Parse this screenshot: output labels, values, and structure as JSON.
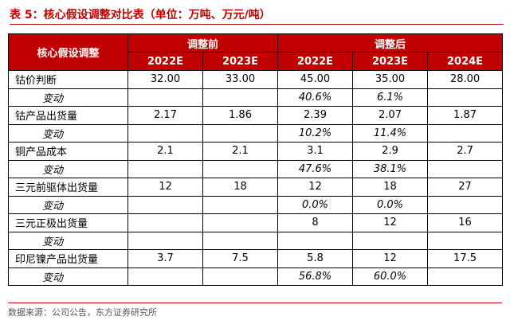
{
  "title": "表 5：核心假设调整对比表（单位：万吨、万元/吨）",
  "header": {
    "row_label": "核心假设调整",
    "group_before": "调整前",
    "group_after": "调整后",
    "years": [
      "2022E",
      "2023E",
      "2022E",
      "2023E",
      "2024E"
    ]
  },
  "rows": [
    {
      "label": "钴价判断",
      "cells": [
        "32.00",
        "33.00",
        "45.00",
        "35.00",
        "28.00"
      ]
    },
    {
      "label": "变动",
      "cells": [
        "",
        "",
        "40.6%",
        "6.1%",
        ""
      ]
    },
    {
      "label": "钴产品出货量",
      "cells": [
        "2.17",
        "1.86",
        "2.39",
        "2.07",
        "1.87"
      ]
    },
    {
      "label": "变动",
      "cells": [
        "",
        "",
        "10.2%",
        "11.4%",
        ""
      ]
    },
    {
      "label": "铜产品成本",
      "cells": [
        "2.1",
        "2.1",
        "3.1",
        "2.9",
        "2.7"
      ]
    },
    {
      "label": "变动",
      "cells": [
        "",
        "",
        "47.6%",
        "38.1%",
        ""
      ]
    },
    {
      "label": "三元前驱体出货量",
      "cells": [
        "12",
        "18",
        "12",
        "18",
        "27"
      ]
    },
    {
      "label": "变动",
      "cells": [
        "",
        "",
        "0.0%",
        "0.0%",
        ""
      ]
    },
    {
      "label": "三元正极出货量",
      "cells": [
        "",
        "",
        "8",
        "12",
        "16"
      ]
    },
    {
      "label": "变动",
      "cells": [
        "",
        "",
        "",
        "",
        ""
      ]
    },
    {
      "label": "印尼镍产品出货量",
      "cells": [
        "3.7",
        "7.5",
        "5.8",
        "12",
        "17.5"
      ]
    },
    {
      "label": "变动",
      "cells": [
        "",
        "",
        "56.8%",
        "60.0%",
        ""
      ]
    }
  ],
  "source": "数据来源：公司公告，东方证券研究所"
}
